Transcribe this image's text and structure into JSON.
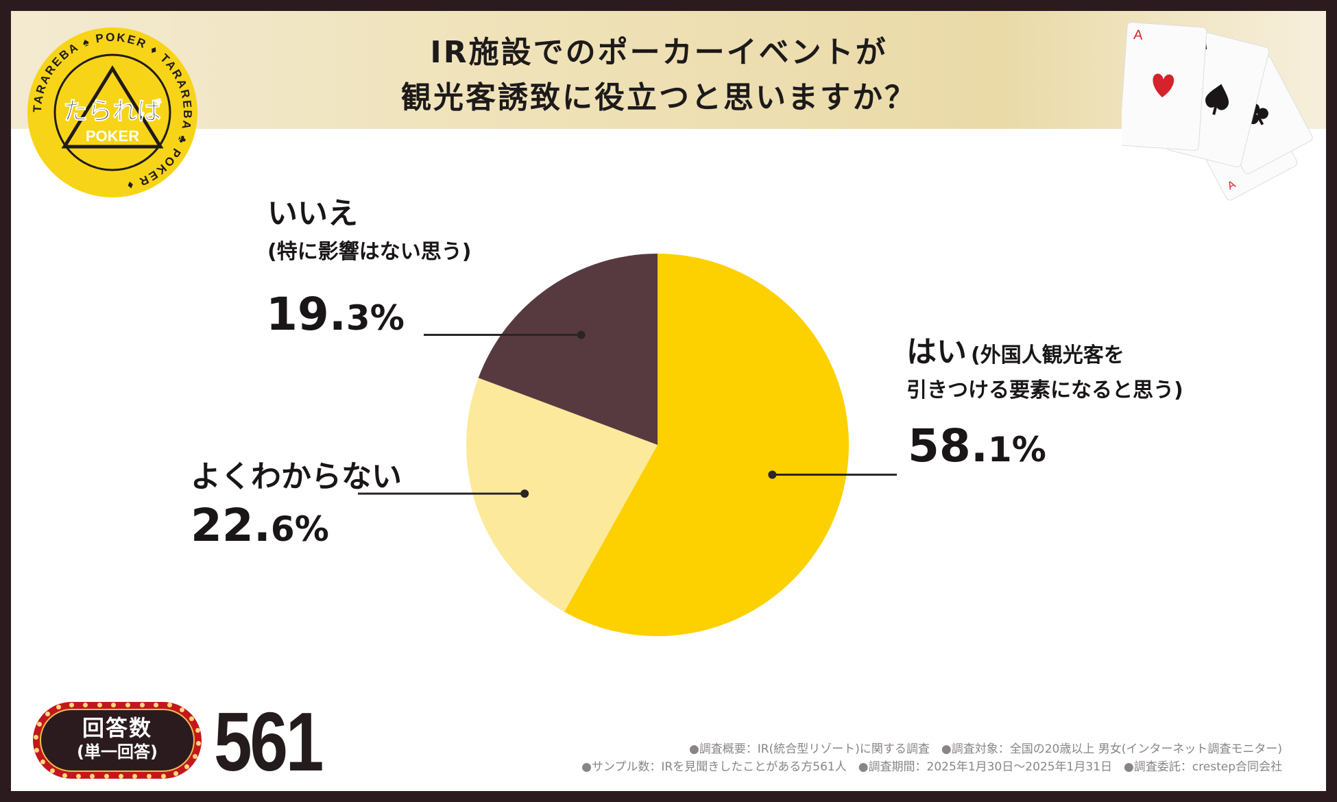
{
  "title_lines": [
    "IR施設でのポーカーイベントが",
    "観光客誘致に役立つと思いますか？"
  ],
  "logo": {
    "main": "たられば",
    "sub": "POKER",
    "ring": "TARAREBA ♠ POKER ♦ TARAREBA ♣ POKER ♦"
  },
  "colors": {
    "yes": "#fdd000",
    "unknown": "#fde99b",
    "no": "#573a40",
    "frame": "#2b1b1f",
    "badge_red": "#c2181d"
  },
  "chart_data": {
    "type": "pie",
    "title": "IR施設でのポーカーイベントが観光客誘致に役立つと思いますか？",
    "start": "12 o'clock, clockwise",
    "slices": [
      {
        "key": "yes",
        "label": "はい",
        "sub_label_inline": "(外国人観光客を",
        "sub_label_line2": "引きつける要素になると思う)",
        "value": 58.1,
        "pct_big": "58.",
        "pct_small": "1%"
      },
      {
        "key": "unknown",
        "label": "よくわからない",
        "value": 22.6,
        "pct_big": "22.",
        "pct_small": "6%"
      },
      {
        "key": "no",
        "label": "いいえ",
        "sub_label": "(特に影響はない思う)",
        "value": 19.3,
        "pct_big": "19.",
        "pct_small": "3%"
      }
    ]
  },
  "respondents": {
    "badge_line1": "回答数",
    "badge_line2": "(単一回答)",
    "count": "561"
  },
  "notes": [
    "●調査概要：IR(統合型リゾート)に関する調査　●調査対象：全国の20歳以上 男女(インターネット調査モニター)",
    "●サンプル数：IRを見聞きしたことがある方561人　●調査期間：2025年1月30日～2025年1月31日　●調査委託：crestep合同会社"
  ]
}
